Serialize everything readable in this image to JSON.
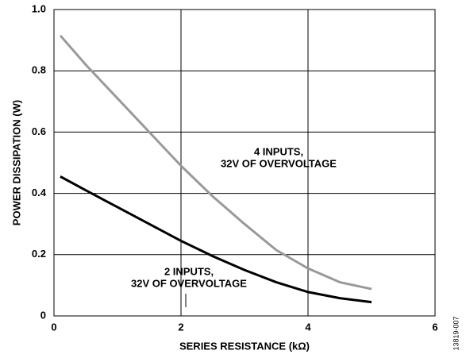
{
  "chart_data": {
    "type": "line",
    "xlabel": "SERIES RESISTANCE (kΩ)",
    "ylabel": "POWER DISSIPATION (W)",
    "figure_id": "13819-007",
    "x": [
      0.1,
      0.5,
      1,
      1.5,
      2,
      2.5,
      3,
      3.5,
      4,
      4.5,
      5
    ],
    "series": [
      {
        "color": "#999999",
        "values": [
          0.915,
          0.82,
          0.71,
          0.6,
          0.49,
          0.39,
          0.3,
          0.215,
          0.155,
          0.11,
          0.088
        ]
      },
      {
        "color": "#000000",
        "values": [
          0.455,
          0.41,
          0.355,
          0.3,
          0.245,
          0.195,
          0.15,
          0.11,
          0.078,
          0.058,
          0.045
        ]
      }
    ],
    "annotations": [
      {
        "lines": [
          "4 INPUTS,",
          "32V OF OVERVOLTAGE"
        ]
      },
      {
        "lines": [
          "2 INPUTS,",
          "32V OF OVERVOLTAGE"
        ]
      }
    ],
    "xlim": [
      0,
      6
    ],
    "xticks": [
      0,
      2,
      4,
      6
    ],
    "ylim": [
      0,
      1
    ],
    "yticks": [
      0,
      0.2,
      0.4,
      0.6,
      0.8,
      {
        "value": 1,
        "label": "1.0"
      }
    ],
    "grid": true
  }
}
